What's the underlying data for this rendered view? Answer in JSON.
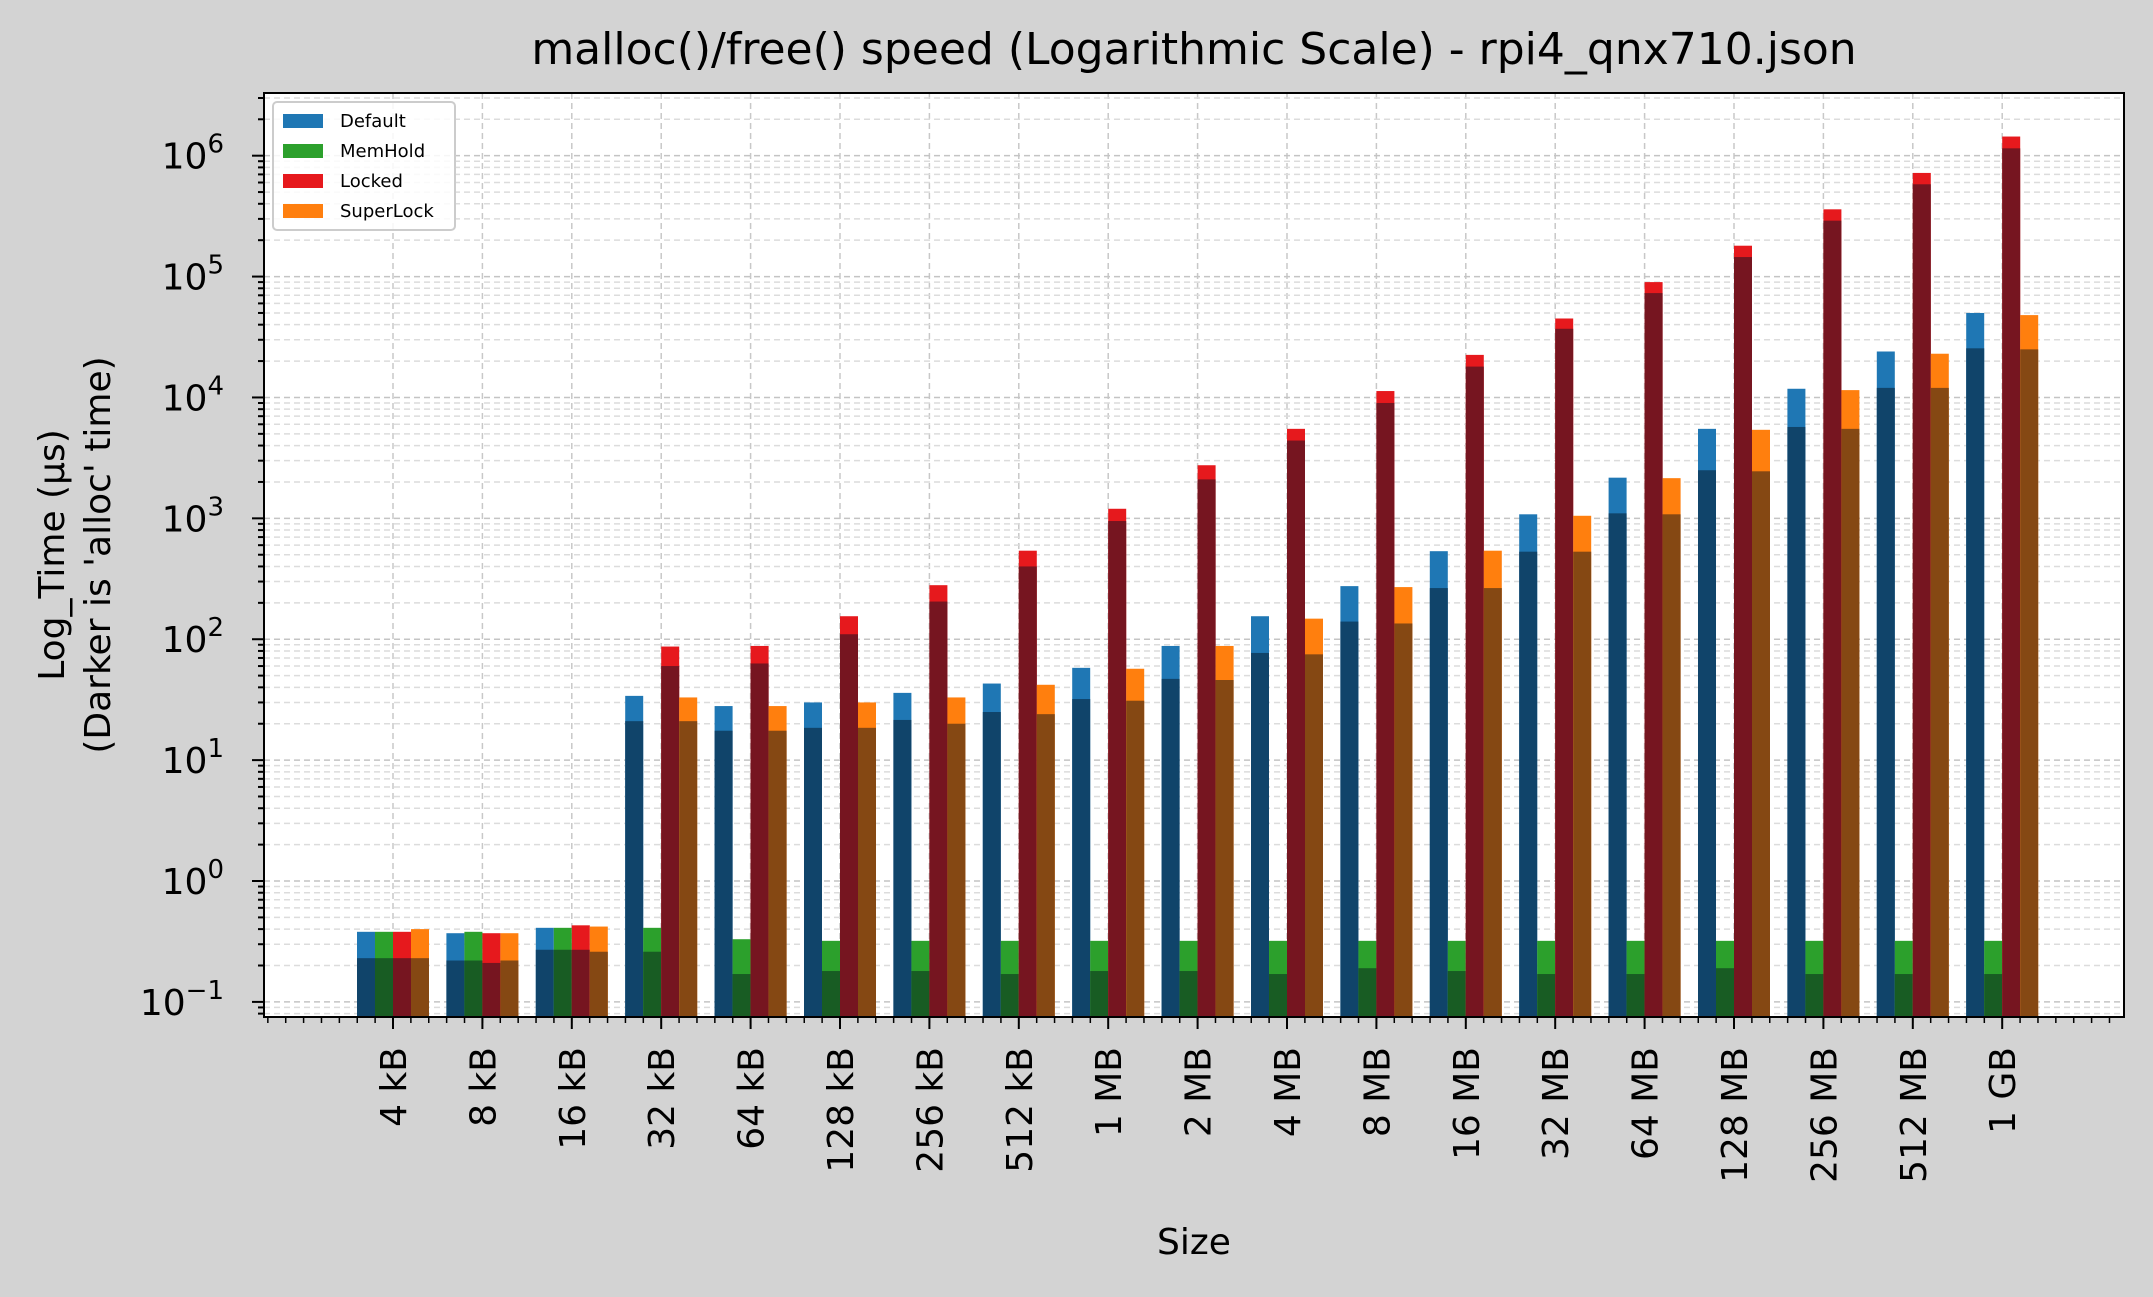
{
  "chart_data": {
    "type": "bar",
    "stacked_overlay": true,
    "title": "malloc()/free() speed (Logarithmic Scale) - rpi4_qnx710.json",
    "xlabel": "Size",
    "ylabel_lines": [
      "Log_Time (µs)",
      "(Darker is 'alloc' time)"
    ],
    "yscale": "log",
    "ylim": [
      0.075,
      3300000
    ],
    "yticks": [
      0.1,
      1,
      10,
      100,
      1000,
      10000,
      100000,
      1000000
    ],
    "ytick_labels": [
      {
        "base": "10",
        "exp": "−1"
      },
      {
        "base": "10",
        "exp": "0"
      },
      {
        "base": "10",
        "exp": "1"
      },
      {
        "base": "10",
        "exp": "2"
      },
      {
        "base": "10",
        "exp": "3"
      },
      {
        "base": "10",
        "exp": "4"
      },
      {
        "base": "10",
        "exp": "5"
      },
      {
        "base": "10",
        "exp": "6"
      }
    ],
    "grid": true,
    "legend_position": "top-left",
    "categories": [
      "4 kB",
      "8 kB",
      "16 kB",
      "32 kB",
      "64 kB",
      "128 kB",
      "256 kB",
      "512 kB",
      "1 MB",
      "2 MB",
      "4 MB",
      "8 MB",
      "16 MB",
      "32 MB",
      "64 MB",
      "128 MB",
      "256 MB",
      "512 MB",
      "1 GB"
    ],
    "series": [
      {
        "name": "Default",
        "color": "#1f77b4",
        "alloc_color": "#10446a",
        "total": [
          0.38,
          0.37,
          0.41,
          34,
          28,
          30,
          36,
          43,
          58,
          88,
          155,
          275,
          535,
          1080,
          2170,
          5500,
          11800,
          24000,
          50000
        ],
        "alloc": [
          0.23,
          0.22,
          0.27,
          21,
          17.5,
          18.5,
          21.5,
          25,
          32,
          47,
          77,
          140,
          265,
          530,
          1100,
          2500,
          5700,
          12000,
          25500
        ]
      },
      {
        "name": "MemHold",
        "color": "#2ca02c",
        "alloc_color": "#185c23",
        "total": [
          0.38,
          0.38,
          0.41,
          0.41,
          0.33,
          0.32,
          0.32,
          0.32,
          0.32,
          0.32,
          0.32,
          0.32,
          0.32,
          0.32,
          0.32,
          0.32,
          0.32,
          0.32,
          0.32
        ],
        "alloc": [
          0.23,
          0.22,
          0.27,
          0.26,
          0.17,
          0.18,
          0.18,
          0.17,
          0.18,
          0.18,
          0.17,
          0.19,
          0.18,
          0.17,
          0.17,
          0.19,
          0.17,
          0.17,
          0.17
        ]
      },
      {
        "name": "Locked",
        "color": "#e6191d",
        "alloc_color": "#761520",
        "total": [
          0.38,
          0.37,
          0.43,
          87,
          88,
          155,
          280,
          540,
          1200,
          2750,
          5500,
          11300,
          22500,
          45000,
          90000,
          180000,
          360000,
          720000,
          1440000
        ],
        "alloc": [
          0.23,
          0.21,
          0.27,
          60,
          63,
          110,
          205,
          400,
          950,
          2100,
          4400,
          9000,
          18000,
          37000,
          73000,
          145000,
          290000,
          580000,
          1150000
        ]
      },
      {
        "name": "SuperLock",
        "color": "#ff7f0e",
        "alloc_color": "#854813",
        "total": [
          0.4,
          0.37,
          0.42,
          33,
          28,
          30,
          33,
          42,
          57,
          88,
          148,
          270,
          540,
          1050,
          2150,
          5400,
          11500,
          23000,
          48000
        ],
        "alloc": [
          0.23,
          0.22,
          0.26,
          21,
          17.5,
          18.5,
          20,
          24,
          31,
          46,
          75,
          135,
          265,
          530,
          1080,
          2450,
          5500,
          12000,
          25000
        ]
      }
    ]
  }
}
